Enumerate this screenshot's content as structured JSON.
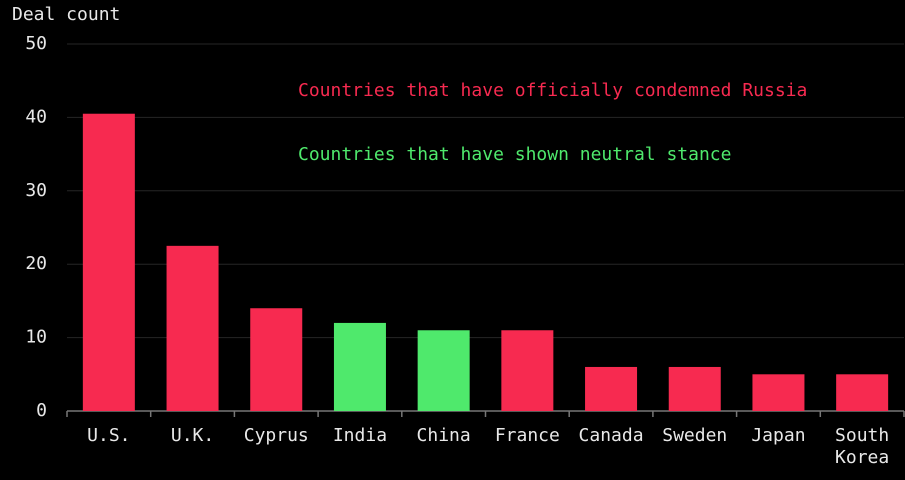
{
  "chart_data": {
    "type": "bar",
    "title": "Deal count",
    "categories": [
      "U.S.",
      "U.K.",
      "Cyprus",
      "India",
      "China",
      "France",
      "Canada",
      "Sweden",
      "Japan",
      "South Korea"
    ],
    "series": [
      {
        "name": "Countries that have officially condemned Russia",
        "color": "#f72a50",
        "values": [
          40.5,
          22.5,
          14,
          null,
          null,
          11,
          6,
          6,
          5,
          5
        ]
      },
      {
        "name": "Countries that have shown neutral stance",
        "color": "#4fe96c",
        "values": [
          null,
          null,
          null,
          12,
          11,
          null,
          null,
          null,
          null,
          null
        ]
      }
    ],
    "ylim": [
      0,
      50
    ],
    "yticks": [
      0,
      10,
      20,
      30,
      40,
      50
    ],
    "grid": true
  }
}
